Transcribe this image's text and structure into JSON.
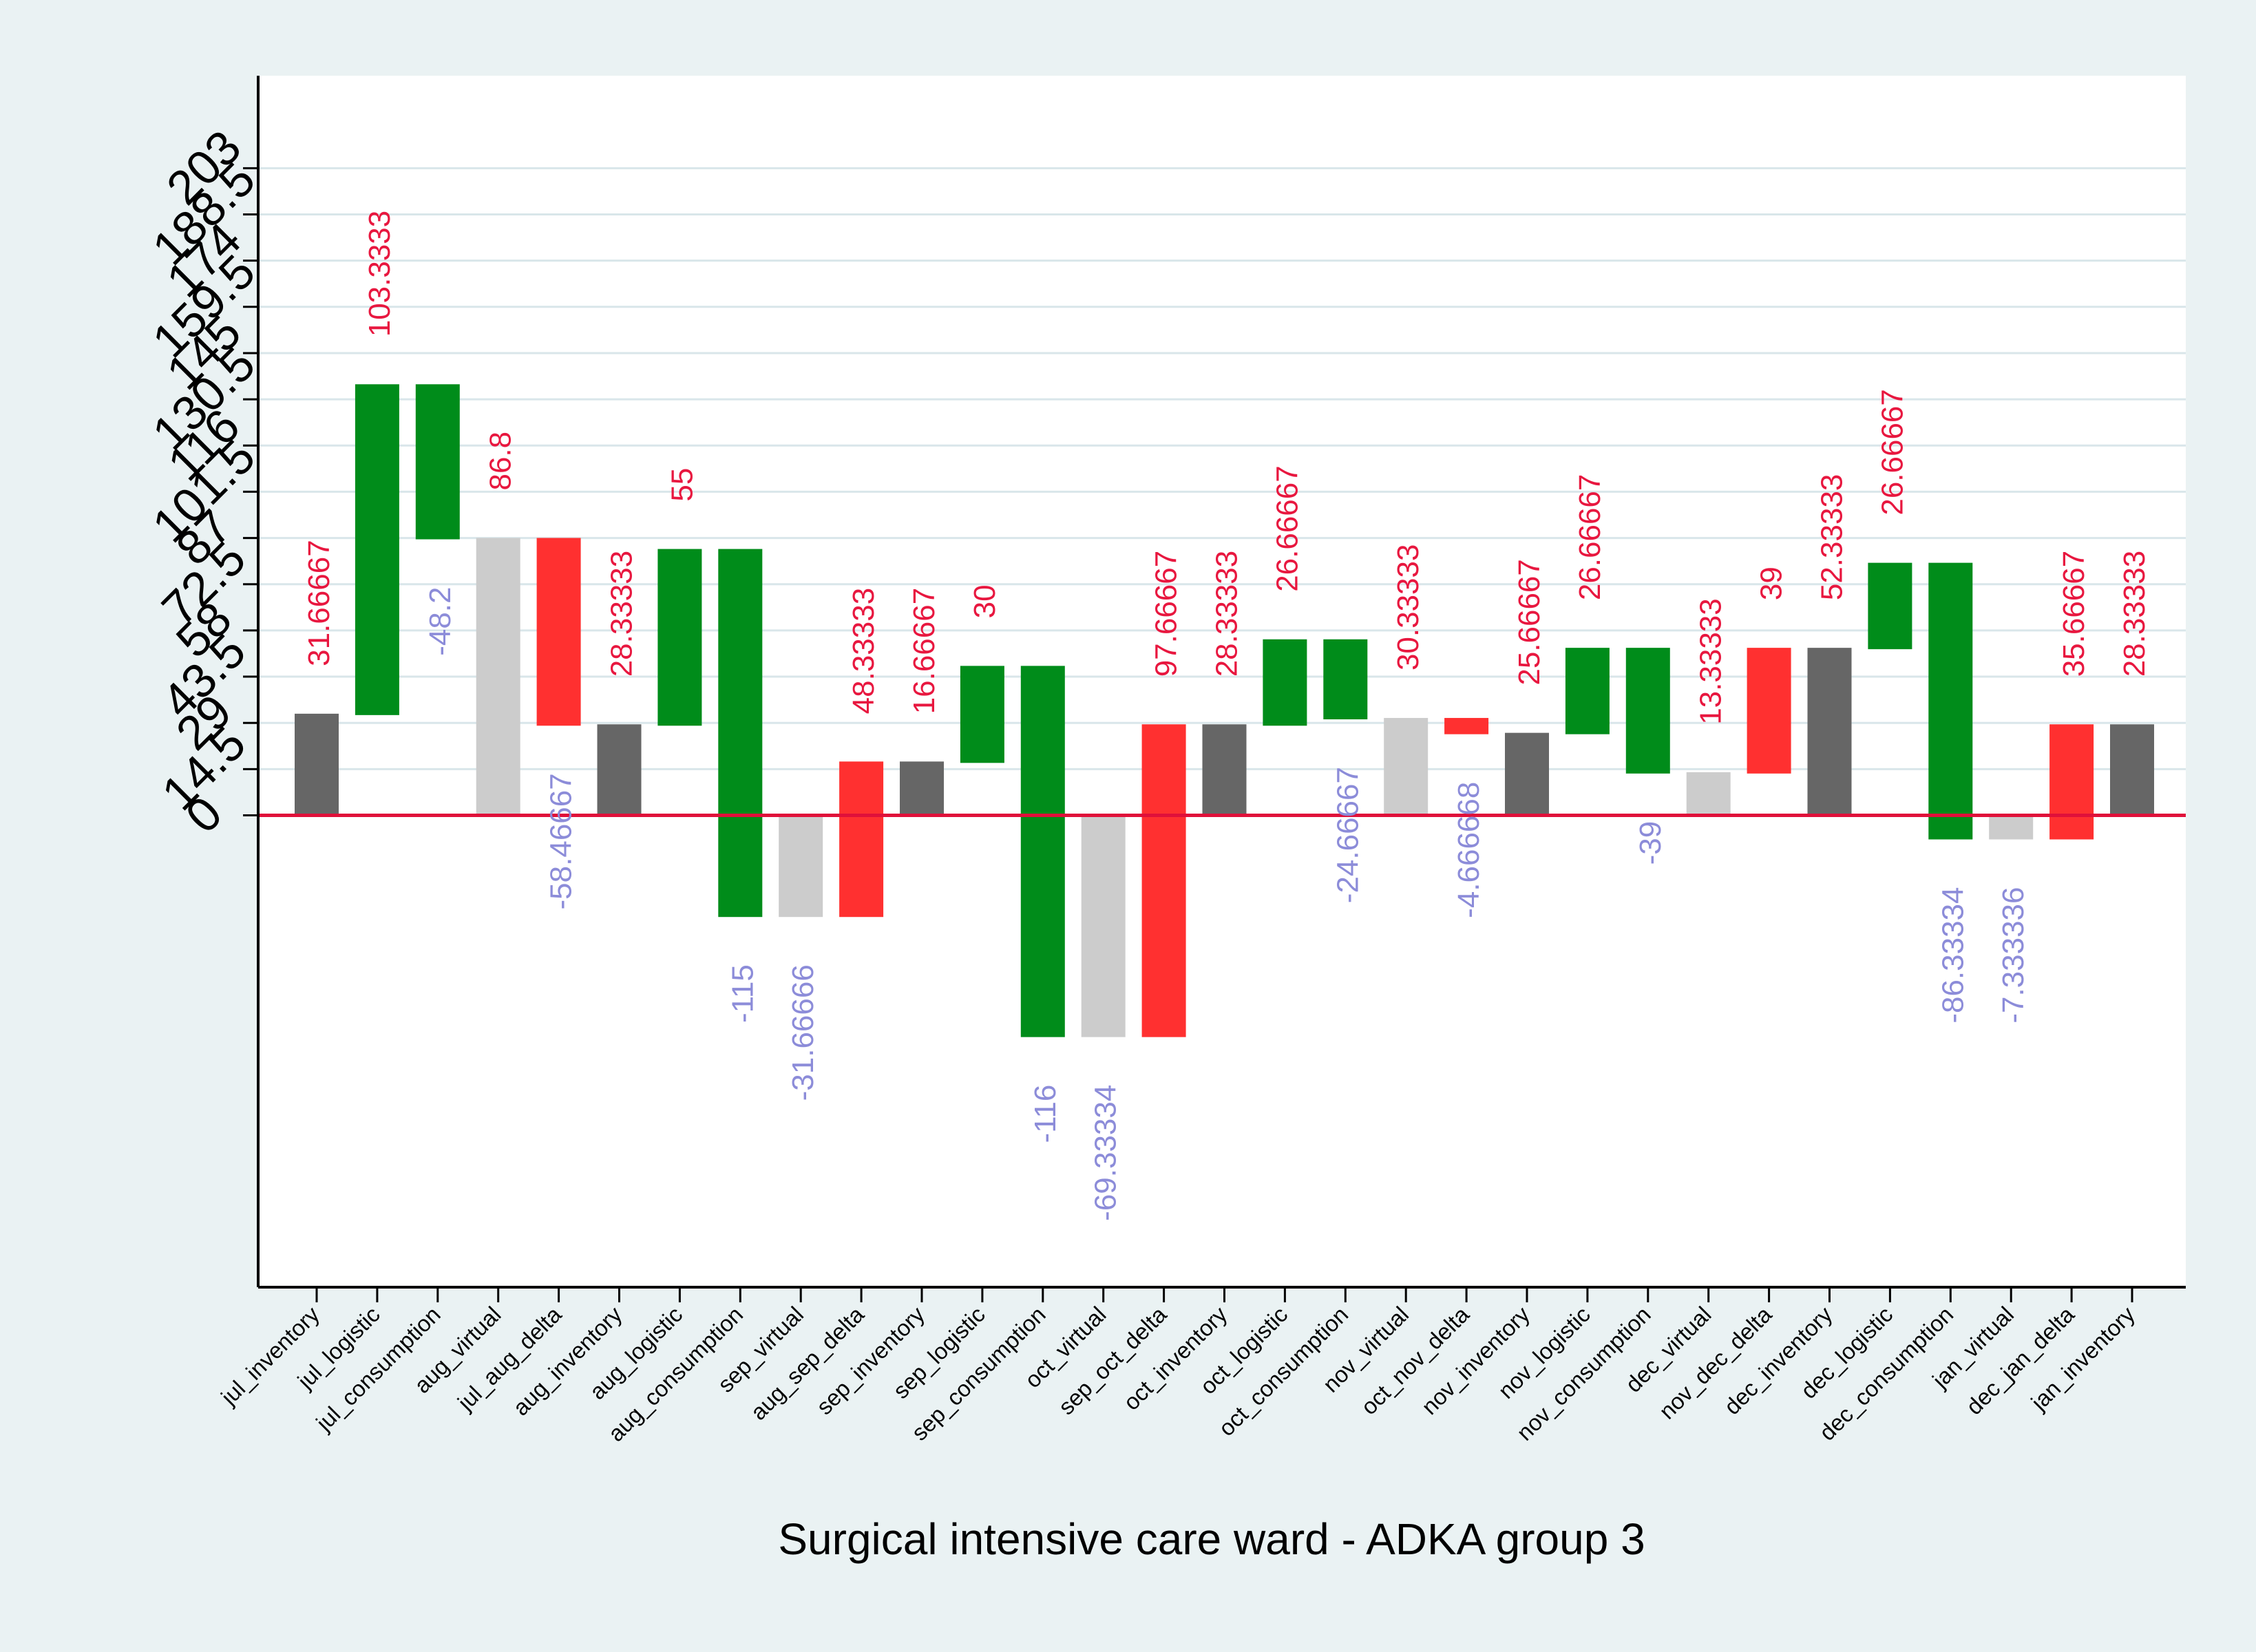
{
  "chart_data": {
    "type": "bar",
    "subtype": "waterfall",
    "title": "",
    "xlabel": "Surgical intensive care ward - ADKA group 3",
    "ylabel": "",
    "ylim": [
      -148,
      232
    ],
    "yticks": [
      0,
      14.5,
      29,
      43.5,
      58,
      72.5,
      87,
      101.5,
      116,
      130.5,
      145,
      159.5,
      174,
      188.5,
      203
    ],
    "ytick_labels": [
      "0",
      "14.5",
      "29",
      "43.5",
      "58",
      "72.5",
      "87",
      "101.5",
      "116",
      "130.5",
      "145",
      "159.5",
      "174",
      "188.5",
      "203"
    ],
    "grid": true,
    "zero_line_color": "#e0103a",
    "colors": {
      "inventory": "#666666",
      "logistic": "#008c1a",
      "consumption": "#008c1a",
      "virtual": "#cccccc",
      "delta": "#ff3030",
      "positive_label": "#e8173f",
      "negative_label": "#8c8cd9"
    },
    "bars": [
      {
        "category": "jul_inventory",
        "kind": "inventory",
        "bottom": 0,
        "top": 31.66667,
        "label": "31.66667",
        "label_sign": "positive"
      },
      {
        "category": "jul_logistic",
        "kind": "logistic",
        "bottom": 31.66667,
        "top": 135,
        "label": "103.3333",
        "label_sign": "positive"
      },
      {
        "category": "jul_consumption",
        "kind": "consumption",
        "bottom": 86.8,
        "top": 135,
        "label": "-48.2",
        "label_sign": "negative"
      },
      {
        "category": "aug_virtual",
        "kind": "virtual",
        "bottom": 0,
        "top": 86.8,
        "label": "86.8",
        "label_sign": "positive"
      },
      {
        "category": "jul_aug_delta",
        "kind": "delta",
        "bottom": 28.33333,
        "top": 86.8,
        "label": "-58.46667",
        "label_sign": "negative"
      },
      {
        "category": "aug_inventory",
        "kind": "inventory",
        "bottom": 0,
        "top": 28.33333,
        "label": "28.33333",
        "label_sign": "positive"
      },
      {
        "category": "aug_logistic",
        "kind": "logistic",
        "bottom": 28.33333,
        "top": 83.33333,
        "label": "55",
        "label_sign": "positive"
      },
      {
        "category": "aug_consumption",
        "kind": "consumption",
        "bottom": -31.66667,
        "top": 83.33333,
        "label": "-115",
        "label_sign": "negative"
      },
      {
        "category": "sep_virtual",
        "kind": "virtual",
        "bottom": -31.66666,
        "top": 0,
        "label": "-31.66666",
        "label_sign": "negative"
      },
      {
        "category": "aug_sep_delta",
        "kind": "delta",
        "bottom": -31.66666,
        "top": 16.66667,
        "label": "48.33333",
        "label_sign": "positive"
      },
      {
        "category": "sep_inventory",
        "kind": "inventory",
        "bottom": 0,
        "top": 16.66667,
        "label": "16.66667",
        "label_sign": "positive"
      },
      {
        "category": "sep_logistic",
        "kind": "logistic",
        "bottom": 16.66667,
        "top": 46.66667,
        "label": "30",
        "label_sign": "positive"
      },
      {
        "category": "sep_consumption",
        "kind": "consumption",
        "bottom": -69.33333,
        "top": 46.66667,
        "label": "-116",
        "label_sign": "negative"
      },
      {
        "category": "oct_virtual",
        "kind": "virtual",
        "bottom": -69.33334,
        "top": 0,
        "label": "-69.33334",
        "label_sign": "negative"
      },
      {
        "category": "sep_oct_delta",
        "kind": "delta",
        "bottom": -69.33334,
        "top": 28.33333,
        "label": "97.66667",
        "label_sign": "positive"
      },
      {
        "category": "oct_inventory",
        "kind": "inventory",
        "bottom": 0,
        "top": 28.33333,
        "label": "28.33333",
        "label_sign": "positive"
      },
      {
        "category": "oct_logistic",
        "kind": "logistic",
        "bottom": 28.33333,
        "top": 55,
        "label": "26.66667",
        "label_sign": "positive"
      },
      {
        "category": "oct_consumption",
        "kind": "consumption",
        "bottom": 30.33333,
        "top": 55,
        "label": "-24.66667",
        "label_sign": "negative"
      },
      {
        "category": "nov_virtual",
        "kind": "virtual",
        "bottom": 0,
        "top": 30.33333,
        "label": "30.33333",
        "label_sign": "positive"
      },
      {
        "category": "oct_nov_delta",
        "kind": "delta",
        "bottom": 25.66667,
        "top": 30.33333,
        "label": "-4.666668",
        "label_sign": "negative"
      },
      {
        "category": "nov_inventory",
        "kind": "inventory",
        "bottom": 0,
        "top": 25.66667,
        "label": "25.66667",
        "label_sign": "positive"
      },
      {
        "category": "nov_logistic",
        "kind": "logistic",
        "bottom": 25.66667,
        "top": 52.33333,
        "label": "26.66667",
        "label_sign": "positive"
      },
      {
        "category": "nov_consumption",
        "kind": "consumption",
        "bottom": 13.33333,
        "top": 52.33333,
        "label": "-39",
        "label_sign": "negative"
      },
      {
        "category": "dec_virtual",
        "kind": "virtual",
        "bottom": 0,
        "top": 13.33333,
        "label": "13.33333",
        "label_sign": "positive"
      },
      {
        "category": "nov_dec_delta",
        "kind": "delta",
        "bottom": 13.33333,
        "top": 52.33333,
        "label": "39",
        "label_sign": "positive"
      },
      {
        "category": "dec_inventory",
        "kind": "inventory",
        "bottom": 0,
        "top": 52.33333,
        "label": "52.33333",
        "label_sign": "positive"
      },
      {
        "category": "dec_logistic",
        "kind": "logistic",
        "bottom": 52.33333,
        "top": 79,
        "label": "26.66667",
        "label_sign": "positive"
      },
      {
        "category": "dec_consumption",
        "kind": "consumption",
        "bottom": -7.333336,
        "top": 79,
        "label": "-86.33334",
        "label_sign": "negative"
      },
      {
        "category": "jan_virtual",
        "kind": "virtual",
        "bottom": -7.333336,
        "top": 0,
        "label": "-7.333336",
        "label_sign": "negative"
      },
      {
        "category": "dec_jan_delta",
        "kind": "delta",
        "bottom": -7.333336,
        "top": 28.33333,
        "label": "35.66667",
        "label_sign": "positive"
      },
      {
        "category": "jan_inventory",
        "kind": "inventory",
        "bottom": 0,
        "top": 28.33333,
        "label": "28.33333",
        "label_sign": "positive"
      }
    ]
  }
}
